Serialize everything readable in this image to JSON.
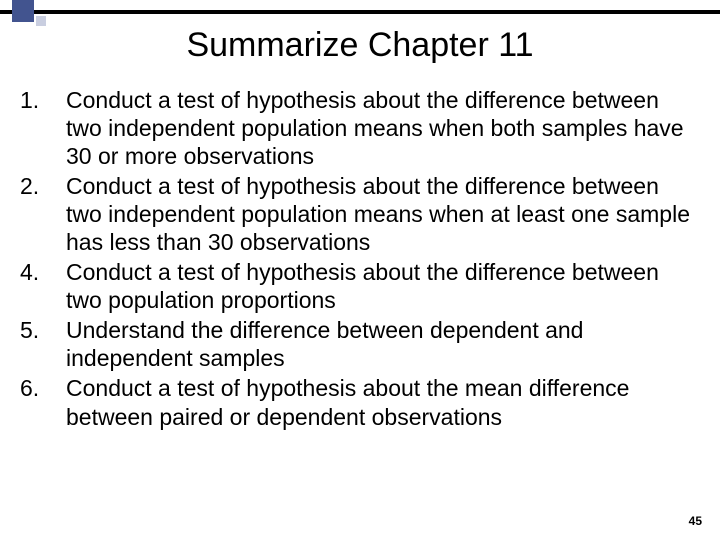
{
  "decoration": {
    "bar_color": "#000000",
    "square_large_color": "#42548f",
    "square_small_color": "#c9cee0"
  },
  "title": "Summarize Chapter 11",
  "title_fontsize": 34,
  "body_fontsize": 23,
  "background_color": "#ffffff",
  "text_color": "#000000",
  "items": [
    {
      "num": "1.",
      "text": "Conduct a test of hypothesis about the difference between two independent population means when both samples have 30 or more observations"
    },
    {
      "num": "2.",
      "text": "Conduct a test of hypothesis about the difference between two independent population means when at least one sample has less than 30 observations"
    },
    {
      "num": "4.",
      "text": "Conduct a test of hypothesis about the difference between two population proportions"
    },
    {
      "num": "5.",
      "text": "Understand the difference between dependent and independent samples"
    },
    {
      "num": "6.",
      "text": "Conduct a test of hypothesis about the mean difference between paired or dependent observations"
    }
  ],
  "page_number": "45"
}
